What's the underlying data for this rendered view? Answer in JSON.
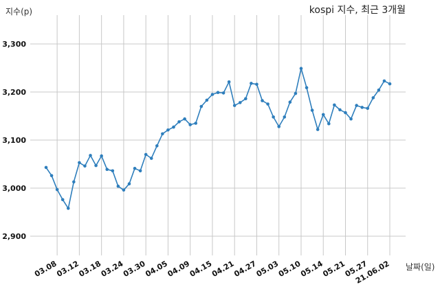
{
  "chart_data": {
    "type": "line",
    "title": "kospi 지수, 최근 3개월",
    "ylabel": "지수(p)",
    "xlabel": "날짜(일)",
    "ylim": [
      2860,
      3360
    ],
    "yticks": [
      2900,
      3000,
      3100,
      3200,
      3300
    ],
    "ytick_labels": [
      "2,900",
      "3,000",
      "3,100",
      "3,200",
      "3,300"
    ],
    "xtick_labels": [
      "03.08",
      "03.12",
      "03.18",
      "03.24",
      "03.30",
      "04.05",
      "04.09",
      "04.15",
      "04.21",
      "04.27",
      "05.03",
      "05.10",
      "05.14",
      "05.21",
      "05.27",
      "21.06.02"
    ],
    "xtick_index": [
      2,
      6,
      10,
      14,
      18,
      22,
      26,
      30,
      34,
      38,
      42,
      46,
      50,
      54,
      58,
      62
    ],
    "grid": true,
    "line_color": "#2e7ebc",
    "series": [
      {
        "name": "",
        "values": [
          3043,
          3026,
          2997,
          2976,
          2958,
          3013,
          3053,
          3046,
          3068,
          3047,
          3067,
          3039,
          3036,
          3004,
          2996,
          3009,
          3041,
          3036,
          3070,
          3062,
          3088,
          3113,
          3121,
          3127,
          3138,
          3144,
          3132,
          3135,
          3170,
          3183,
          3195,
          3199,
          3198,
          3221,
          3172,
          3178,
          3186,
          3218,
          3216,
          3182,
          3175,
          3148,
          3128,
          3148,
          3179,
          3197,
          3249,
          3209,
          3162,
          3122,
          3153,
          3134,
          3173,
          3163,
          3157,
          3144,
          3172,
          3168,
          3166,
          3188,
          3204,
          3223,
          3217
        ]
      }
    ]
  }
}
